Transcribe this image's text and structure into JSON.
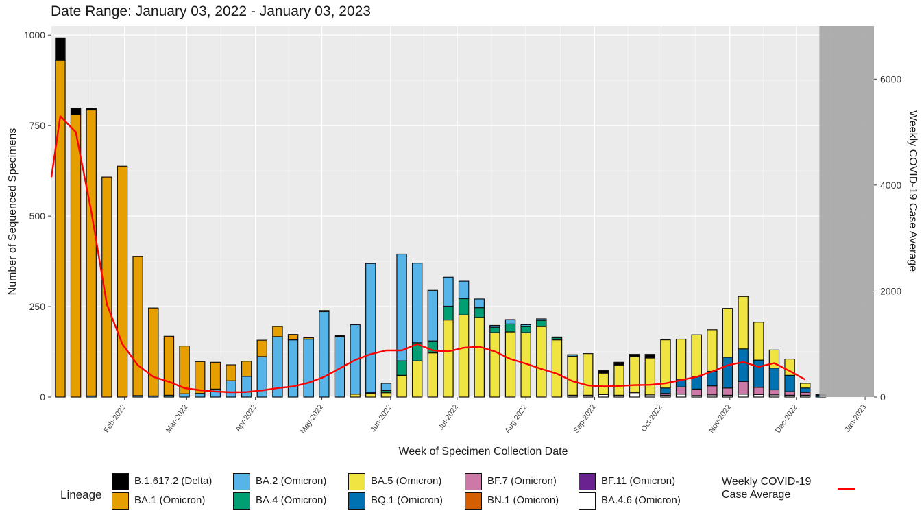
{
  "subtitle": "Date Range: January 03, 2022 - January 03, 2023",
  "chart_data": {
    "type": "bar",
    "stacked": true,
    "subtitle": "Date Range: January 03, 2022 - January 03, 2023",
    "xlabel": "Week of Specimen Collection Date",
    "ylabel": "Number of Sequenced Specimens",
    "y2label": "Weekly COVID-19 Case Average",
    "x_ticks": [
      "Feb-2022",
      "Mar-2022",
      "Apr-2022",
      "May-2022",
      "Jun-2022",
      "Jul-2022",
      "Aug-2022",
      "Sep-2022",
      "Oct-2022",
      "Nov-2022",
      "Dec-2022",
      "Jan-2023"
    ],
    "x_range": [
      "2021-12-30",
      "2023-01-05"
    ],
    "y_ticks": [
      0,
      250,
      500,
      750,
      1000
    ],
    "ylim": [
      0,
      1025
    ],
    "y2_ticks": [
      0,
      2000,
      4000,
      6000
    ],
    "y2lim": [
      0,
      7000
    ],
    "grid": true,
    "shaded_region": {
      "from": "2022-12-12",
      "to": "2023-01-05",
      "color": "#a6a6a6"
    },
    "series": [
      {
        "name": "B.1.617.2 (Delta)",
        "color": "#000000"
      },
      {
        "name": "BA.1 (Omicron)",
        "color": "#e69f00"
      },
      {
        "name": "BA.2 (Omicron)",
        "color": "#56b4e9"
      },
      {
        "name": "BA.4 (Omicron)",
        "color": "#009e73"
      },
      {
        "name": "BA.5 (Omicron)",
        "color": "#f0e442"
      },
      {
        "name": "BQ.1 (Omicron)",
        "color": "#0072b2"
      },
      {
        "name": "BF.7 (Omicron)",
        "color": "#cc79a7"
      },
      {
        "name": "BN.1 (Omicron)",
        "color": "#d55e00"
      },
      {
        "name": "BF.11 (Omicron)",
        "color": "#6a2290"
      },
      {
        "name": "BA.4.6 (Omicron)",
        "color": "#ffffff"
      }
    ],
    "stack_order": [
      "BA.4.6 (Omicron)",
      "BF.11 (Omicron)",
      "BN.1 (Omicron)",
      "BF.7 (Omicron)",
      "BQ.1 (Omicron)",
      "BA.5 (Omicron)",
      "BA.4 (Omicron)",
      "BA.2 (Omicron)",
      "BA.1 (Omicron)",
      "B.1.617.2 (Delta)"
    ],
    "bars": [
      {
        "week": "2022-01-03",
        "B.1.617.2 (Delta)": 62,
        "BA.1 (Omicron)": 930
      },
      {
        "week": "2022-01-10",
        "B.1.617.2 (Delta)": 18,
        "BA.1 (Omicron)": 780
      },
      {
        "week": "2022-01-17",
        "B.1.617.2 (Delta)": 5,
        "BA.1 (Omicron)": 790,
        "BA.2 (Omicron)": 3
      },
      {
        "week": "2022-01-24",
        "BA.1 (Omicron)": 608
      },
      {
        "week": "2022-01-31",
        "BA.1 (Omicron)": 638
      },
      {
        "week": "2022-02-07",
        "BA.1 (Omicron)": 384,
        "BA.2 (Omicron)": 4
      },
      {
        "week": "2022-02-14",
        "BA.1 (Omicron)": 243,
        "BA.2 (Omicron)": 3
      },
      {
        "week": "2022-02-21",
        "BA.1 (Omicron)": 163,
        "BA.2 (Omicron)": 5
      },
      {
        "week": "2022-02-28",
        "BA.1 (Omicron)": 132,
        "BA.2 (Omicron)": 9
      },
      {
        "week": "2022-03-07",
        "BA.1 (Omicron)": 88,
        "BA.2 (Omicron)": 10
      },
      {
        "week": "2022-03-14",
        "BA.1 (Omicron)": 74,
        "BA.2 (Omicron)": 22
      },
      {
        "week": "2022-03-21",
        "BA.1 (Omicron)": 44,
        "BA.2 (Omicron)": 45
      },
      {
        "week": "2022-03-28",
        "BA.1 (Omicron)": 42,
        "BA.2 (Omicron)": 57
      },
      {
        "week": "2022-04-04",
        "BA.1 (Omicron)": 45,
        "BA.2 (Omicron)": 112
      },
      {
        "week": "2022-04-11",
        "BA.1 (Omicron)": 28,
        "BA.2 (Omicron)": 167
      },
      {
        "week": "2022-04-18",
        "BA.1 (Omicron)": 15,
        "BA.2 (Omicron)": 158
      },
      {
        "week": "2022-04-25",
        "BA.1 (Omicron)": 4,
        "BA.2 (Omicron)": 160
      },
      {
        "week": "2022-05-02",
        "BA.1 (Omicron)": 3,
        "BA.2 (Omicron)": 236
      },
      {
        "week": "2022-05-09",
        "B.1.617.2 (Delta)": 4,
        "BA.2 (Omicron)": 166
      },
      {
        "week": "2022-05-16",
        "BA.2 (Omicron)": 192,
        "BA.5 (Omicron)": 8
      },
      {
        "week": "2022-05-23",
        "BA.2 (Omicron)": 357,
        "BA.4 (Omicron)": 2,
        "BA.5 (Omicron)": 10
      },
      {
        "week": "2022-05-30",
        "BA.2 (Omicron)": 20,
        "BA.4 (Omicron)": 6,
        "BA.5 (Omicron)": 12
      },
      {
        "week": "2022-06-06",
        "BA.2 (Omicron)": 295,
        "BA.4 (Omicron)": 40,
        "BA.5 (Omicron)": 60
      },
      {
        "week": "2022-06-13",
        "BA.2 (Omicron)": 220,
        "BA.4 (Omicron)": 50,
        "BA.5 (Omicron)": 100
      },
      {
        "week": "2022-06-20",
        "BA.2 (Omicron)": 140,
        "BA.4 (Omicron)": 33,
        "BA.5 (Omicron)": 122
      },
      {
        "week": "2022-06-27",
        "BA.2 (Omicron)": 80,
        "BA.4 (Omicron)": 38,
        "BA.5 (Omicron)": 213
      },
      {
        "week": "2022-07-04",
        "BA.2 (Omicron)": 48,
        "BA.4 (Omicron)": 45,
        "BA.5 (Omicron)": 227
      },
      {
        "week": "2022-07-11",
        "BA.2 (Omicron)": 24,
        "BA.4 (Omicron)": 27,
        "BA.5 (Omicron)": 220
      },
      {
        "week": "2022-07-18",
        "BA.2 (Omicron)": 5,
        "BA.4 (Omicron)": 15,
        "BA.5 (Omicron)": 178
      },
      {
        "week": "2022-07-25",
        "BA.2 (Omicron)": 12,
        "BA.4 (Omicron)": 22,
        "BA.5 (Omicron)": 180
      },
      {
        "week": "2022-08-01",
        "BA.2 (Omicron)": 5,
        "BA.4 (Omicron)": 17,
        "BA.5 (Omicron)": 178
      },
      {
        "week": "2022-08-08",
        "BA.2 (Omicron)": 4,
        "BA.4 (Omicron)": 17,
        "BA.5 (Omicron)": 195
      },
      {
        "week": "2022-08-15",
        "BA.2 (Omicron)": 2,
        "BA.4 (Omicron)": 6,
        "BA.5 (Omicron)": 158
      },
      {
        "week": "2022-08-22",
        "BA.2 (Omicron)": 4,
        "BA.5 (Omicron)": 108,
        "BA.4.6 (Omicron)": 5
      },
      {
        "week": "2022-08-29",
        "BA.5 (Omicron)": 115,
        "BA.4.6 (Omicron)": 5
      },
      {
        "week": "2022-09-05",
        "B.1.617.2 (Delta)": 7,
        "BA.5 (Omicron)": 59,
        "BA.4.6 (Omicron)": 7
      },
      {
        "week": "2022-09-12",
        "B.1.617.2 (Delta)": 8,
        "BA.5 (Omicron)": 83,
        "BA.4.6 (Omicron)": 5
      },
      {
        "week": "2022-09-19",
        "B.1.617.2 (Delta)": 6,
        "BA.5 (Omicron)": 100,
        "BA.4.6 (Omicron)": 12
      },
      {
        "week": "2022-09-26",
        "B.1.617.2 (Delta)": 10,
        "BA.5 (Omicron)": 102,
        "BA.4.6 (Omicron)": 6
      },
      {
        "week": "2022-10-03",
        "BQ.1 (Omicron)": 15,
        "BF.7 (Omicron)": 5,
        "BA.5 (Omicron)": 133,
        "BA.4.6 (Omicron)": 5
      },
      {
        "week": "2022-10-10",
        "BQ.1 (Omicron)": 22,
        "BF.7 (Omicron)": 20,
        "BA.5 (Omicron)": 110,
        "BA.4.6 (Omicron)": 8
      },
      {
        "week": "2022-10-17",
        "BQ.1 (Omicron)": 35,
        "BF.7 (Omicron)": 18,
        "BA.5 (Omicron)": 115,
        "BA.4.6 (Omicron)": 4
      },
      {
        "week": "2022-10-24",
        "BQ.1 (Omicron)": 40,
        "BF.7 (Omicron)": 25,
        "BA.5 (Omicron)": 115,
        "BA.4.6 (Omicron)": 6
      },
      {
        "week": "2022-10-31",
        "BQ.1 (Omicron)": 85,
        "BF.7 (Omicron)": 20,
        "BA.5 (Omicron)": 135,
        "BA.4.6 (Omicron)": 5
      },
      {
        "week": "2022-11-07",
        "BQ.1 (Omicron)": 90,
        "BF.7 (Omicron)": 35,
        "BA.5 (Omicron)": 145,
        "BA.4.6 (Omicron)": 8
      },
      {
        "week": "2022-11-14",
        "BQ.1 (Omicron)": 75,
        "BF.7 (Omicron)": 20,
        "BA.5 (Omicron)": 105,
        "BA.4.6 (Omicron)": 7
      },
      {
        "week": "2022-11-21",
        "BQ.1 (Omicron)": 60,
        "BF.7 (Omicron)": 14,
        "BA.5 (Omicron)": 50,
        "BA.4.6 (Omicron)": 6
      },
      {
        "week": "2022-11-28",
        "BQ.1 (Omicron)": 45,
        "BF.7 (Omicron)": 10,
        "BA.5 (Omicron)": 45,
        "BA.4.6 (Omicron)": 5
      },
      {
        "week": "2022-12-05",
        "BQ.1 (Omicron)": 12,
        "BF.7 (Omicron)": 8,
        "BA.5 (Omicron)": 13,
        "BA.4.6 (Omicron)": 5
      },
      {
        "week": "2022-12-12",
        "B.1.617.2 (Delta)": 3,
        "BQ.1 (Omicron)": 4
      }
    ],
    "line": {
      "name": "Weekly COVID-19 Case Average",
      "color": "#ff0000",
      "axis": "right",
      "points": [
        [
          "2021-12-30",
          4150
        ],
        [
          "2022-01-03",
          5300
        ],
        [
          "2022-01-10",
          5000
        ],
        [
          "2022-01-17",
          3500
        ],
        [
          "2022-01-24",
          1750
        ],
        [
          "2022-01-31",
          1000
        ],
        [
          "2022-02-07",
          600
        ],
        [
          "2022-02-14",
          380
        ],
        [
          "2022-02-21",
          290
        ],
        [
          "2022-02-28",
          170
        ],
        [
          "2022-03-07",
          130
        ],
        [
          "2022-03-14",
          105
        ],
        [
          "2022-03-21",
          90
        ],
        [
          "2022-03-28",
          95
        ],
        [
          "2022-04-04",
          125
        ],
        [
          "2022-04-11",
          170
        ],
        [
          "2022-04-18",
          200
        ],
        [
          "2022-04-25",
          270
        ],
        [
          "2022-05-02",
          380
        ],
        [
          "2022-05-09",
          540
        ],
        [
          "2022-05-16",
          700
        ],
        [
          "2022-05-23",
          810
        ],
        [
          "2022-05-30",
          880
        ],
        [
          "2022-06-06",
          880
        ],
        [
          "2022-06-13",
          1000
        ],
        [
          "2022-06-20",
          880
        ],
        [
          "2022-06-27",
          860
        ],
        [
          "2022-07-04",
          930
        ],
        [
          "2022-07-11",
          950
        ],
        [
          "2022-07-18",
          860
        ],
        [
          "2022-07-25",
          720
        ],
        [
          "2022-08-01",
          630
        ],
        [
          "2022-08-08",
          530
        ],
        [
          "2022-08-15",
          440
        ],
        [
          "2022-08-22",
          300
        ],
        [
          "2022-08-29",
          220
        ],
        [
          "2022-09-05",
          200
        ],
        [
          "2022-09-12",
          210
        ],
        [
          "2022-09-19",
          225
        ],
        [
          "2022-09-26",
          230
        ],
        [
          "2022-10-03",
          260
        ],
        [
          "2022-10-10",
          320
        ],
        [
          "2022-10-17",
          380
        ],
        [
          "2022-10-24",
          480
        ],
        [
          "2022-10-31",
          600
        ],
        [
          "2022-11-07",
          660
        ],
        [
          "2022-11-14",
          570
        ],
        [
          "2022-11-21",
          640
        ],
        [
          "2022-11-28",
          490
        ],
        [
          "2022-12-05",
          330
        ]
      ]
    }
  },
  "legend": {
    "title": "Lineage",
    "items": [
      {
        "label": "B.1.617.2 (Delta)",
        "color": "#000000"
      },
      {
        "label": "BA.1 (Omicron)",
        "color": "#e69f00"
      },
      {
        "label": "BA.2 (Omicron)",
        "color": "#56b4e9"
      },
      {
        "label": "BA.4 (Omicron)",
        "color": "#009e73"
      },
      {
        "label": "BA.5 (Omicron)",
        "color": "#f0e442"
      },
      {
        "label": "BQ.1 (Omicron)",
        "color": "#0072b2"
      },
      {
        "label": "BF.7 (Omicron)",
        "color": "#cc79a7"
      },
      {
        "label": "BN.1 (Omicron)",
        "color": "#d55e00"
      },
      {
        "label": "BF.11 (Omicron)",
        "color": "#6a2290"
      },
      {
        "label": "BA.4.6 (Omicron)",
        "color": "#ffffff"
      }
    ],
    "line_label_1": "Weekly COVID-19",
    "line_label_2": "Case Average"
  }
}
